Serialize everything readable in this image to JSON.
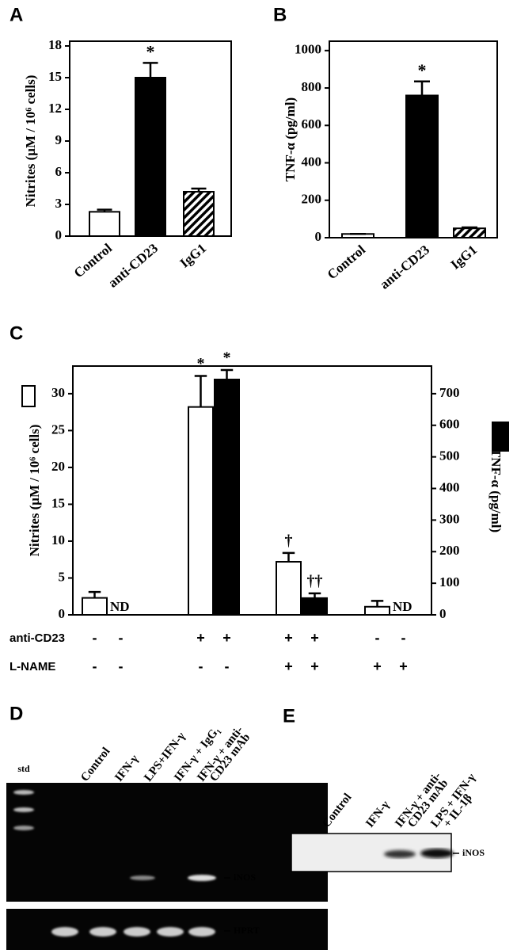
{
  "chart_data": [
    {
      "panel": "A",
      "type": "bar",
      "ylabel": "Nitrites (μM / 10⁶ cells)",
      "categories": [
        "Control",
        "anti-CD23",
        "IgG1"
      ],
      "values": [
        2.3,
        15.0,
        4.2
      ],
      "errors": [
        0.2,
        1.4,
        0.3
      ],
      "annotations": [
        null,
        "*",
        null
      ],
      "colors": [
        "#ffffff",
        "#000000",
        "#000000"
      ],
      "patterns": [
        null,
        null,
        "hatch"
      ],
      "ylim": [
        0,
        18
      ],
      "yticks": [
        0,
        3,
        6,
        9,
        12,
        15,
        18
      ]
    },
    {
      "panel": "B",
      "type": "bar",
      "ylabel": "TNF-α (pg/ml)",
      "categories": [
        "Control",
        "anti-CD23",
        "IgG1"
      ],
      "values": [
        20,
        760,
        50
      ],
      "errors": [
        0,
        75,
        5
      ],
      "annotations": [
        null,
        "*",
        null
      ],
      "colors": [
        "#ffffff",
        "#000000",
        "#000000"
      ],
      "patterns": [
        null,
        null,
        "hatch"
      ],
      "ylim": [
        0,
        1050
      ],
      "yticks": [
        0,
        200,
        400,
        600,
        800,
        1000
      ]
    },
    {
      "panel": "C",
      "type": "grouped-bar",
      "ylabel": "Nitrites (μM / 10⁶ cells)",
      "y2label": "TNF-α (pg/ml)",
      "categories": [
        null,
        null,
        null,
        null
      ],
      "series": [
        {
          "color": "#ffffff",
          "values": [
            2.3,
            28.2,
            7.2,
            1.1
          ],
          "errors": [
            0.8,
            4.2,
            1.2,
            0.8
          ],
          "annotations": [
            null,
            "*",
            "†",
            null
          ]
        },
        {
          "color": "#000000",
          "axis": "y2",
          "values": [
            null,
            745,
            53,
            null
          ],
          "errors": [
            null,
            30,
            15,
            null
          ],
          "value_labels": [
            "ND",
            null,
            null,
            "ND"
          ],
          "annotations": [
            null,
            "*",
            "††",
            null
          ]
        }
      ],
      "ylim": [
        0,
        33.75
      ],
      "yticks": [
        0,
        5,
        10,
        15,
        20,
        25,
        30
      ],
      "y2lim": [
        0,
        787.5
      ],
      "y2ticks": [
        0,
        100,
        200,
        300,
        400,
        500,
        600,
        700
      ],
      "conditions": [
        {
          "name": "anti-CD23",
          "signs": [
            "-",
            "-",
            "+",
            "+",
            "+",
            "+",
            "-",
            "-"
          ]
        },
        {
          "name": "L-NAME",
          "signs": [
            "-",
            "-",
            "-",
            "-",
            "+",
            "+",
            "+",
            "+"
          ]
        }
      ]
    }
  ],
  "gels": [
    {
      "panel": "D",
      "lanes": [
        [
          "std"
        ],
        [
          "Control"
        ],
        [
          "IFN-γ"
        ],
        [
          "LPS+IFN-γ"
        ],
        [
          "IFN-γ + IgG₁"
        ],
        [
          "IFN-γ + anti-",
          "CD23 mAb"
        ]
      ],
      "bands": [
        "iNOS",
        "HPRT"
      ]
    },
    {
      "panel": "E",
      "lanes": [
        [
          "Control"
        ],
        [
          "IFN-γ"
        ],
        [
          "IFN-γ + anti-",
          "CD23 mAb"
        ],
        [
          "LPS + IFN-γ",
          "+ IL-1β"
        ]
      ],
      "bands": [
        "iNOS"
      ]
    }
  ]
}
